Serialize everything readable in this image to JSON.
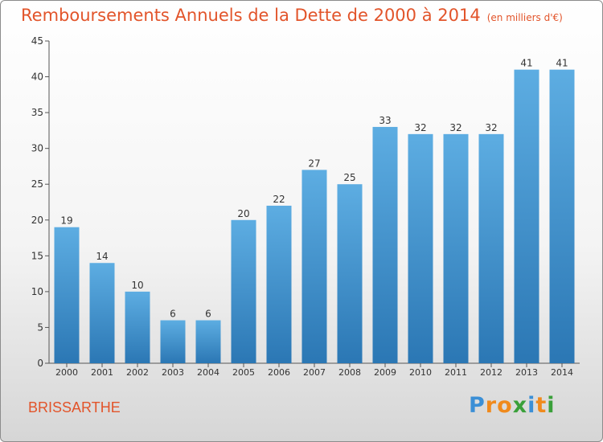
{
  "header": {
    "title": "Remboursements Annuels de la Dette de 2000 à 2014",
    "unit": "(en milliers d'€)"
  },
  "footer": {
    "commune": "BRISSARTHE",
    "brand": "Proxiti",
    "brand_letters": [
      {
        "ch": "P",
        "color": "#3b8fd6"
      },
      {
        "ch": "r",
        "color": "#f08a1c"
      },
      {
        "ch": "o",
        "color": "#f08a1c"
      },
      {
        "ch": "x",
        "color": "#3aa03a"
      },
      {
        "ch": "i",
        "color": "#3b8fd6"
      },
      {
        "ch": "t",
        "color": "#f08a1c"
      },
      {
        "ch": "i",
        "color": "#3aa03a"
      }
    ]
  },
  "colors": {
    "title": "#e2542a",
    "bar_top": "#5dade2",
    "bar_bottom": "#2b77b4"
  },
  "chart_data": {
    "type": "bar",
    "title": "Remboursements Annuels de la Dette de 2000 à 2014",
    "categories": [
      "2000",
      "2001",
      "2002",
      "2003",
      "2004",
      "2005",
      "2006",
      "2007",
      "2008",
      "2009",
      "2010",
      "2011",
      "2012",
      "2013",
      "2014"
    ],
    "values": [
      19,
      14,
      10,
      6,
      6,
      20,
      22,
      27,
      25,
      33,
      32,
      32,
      32,
      41,
      41
    ],
    "ylim": [
      0,
      45
    ],
    "yticks": [
      0,
      5,
      10,
      15,
      20,
      25,
      30,
      35,
      40,
      45
    ],
    "grid": false,
    "data_labels": true
  }
}
